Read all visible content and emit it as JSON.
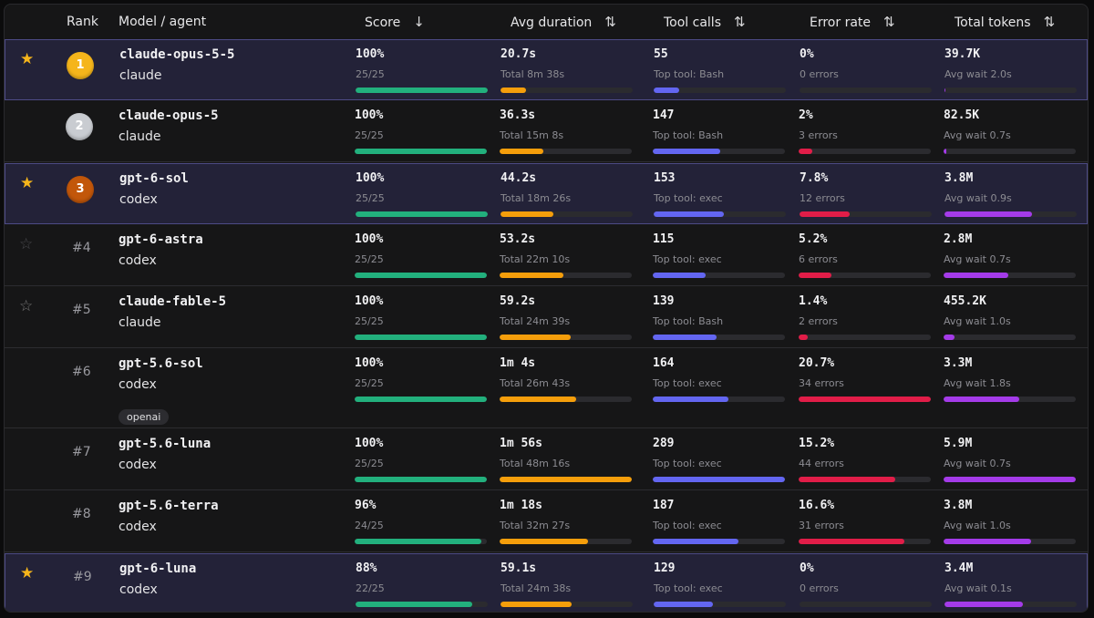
{
  "columns": {
    "rank": "Rank",
    "model": "Model / agent",
    "score": "Score",
    "avg_duration": "Avg duration",
    "tool_calls": "Tool calls",
    "error_rate": "Error rate",
    "total_tokens": "Total tokens"
  },
  "sort_icons": {
    "score": "arrow-down-icon",
    "other": "sort-updown-icon"
  },
  "colors": {
    "score_bar": "#22b07d",
    "duration_bar": "#f59e0b",
    "tools_bar": "#6366f1",
    "error_bar": "#e11d48",
    "tokens_bar": "#a43be9",
    "star_on": "#f5b51b",
    "medal_gold": "#f5b51b",
    "medal_silver": "#c9ccd1",
    "medal_bronze": "#c2570a"
  },
  "rows": [
    {
      "highlight": true,
      "starred": true,
      "rank": "1",
      "medal": "gold",
      "model": "claude-opus-5-5",
      "agent": "claude",
      "tag": "",
      "score": "100%",
      "score_sub": "25/25",
      "score_frac": 1.0,
      "duration": "20.7s",
      "duration_sub": "Total 8m 38s",
      "duration_frac": 0.19,
      "tools": "55",
      "tools_sub": "Top tool: Bash",
      "tools_frac": 0.19,
      "error": "0%",
      "error_sub": "0 errors",
      "error_frac": 0.0,
      "tokens": "39.7K",
      "tokens_sub": "Avg wait 2.0s",
      "tokens_frac": 0.01
    },
    {
      "highlight": false,
      "starred": false,
      "rank": "2",
      "medal": "silver",
      "model": "claude-opus-5",
      "agent": "claude",
      "tag": "",
      "score": "100%",
      "score_sub": "25/25",
      "score_frac": 1.0,
      "duration": "36.3s",
      "duration_sub": "Total 15m 8s",
      "duration_frac": 0.33,
      "tools": "147",
      "tools_sub": "Top tool: Bash",
      "tools_frac": 0.51,
      "error": "2%",
      "error_sub": "3 errors",
      "error_frac": 0.1,
      "tokens": "82.5K",
      "tokens_sub": "Avg wait 0.7s",
      "tokens_frac": 0.02
    },
    {
      "highlight": true,
      "starred": true,
      "rank": "3",
      "medal": "bronze",
      "model": "gpt-6-sol",
      "agent": "codex",
      "tag": "",
      "score": "100%",
      "score_sub": "25/25",
      "score_frac": 1.0,
      "duration": "44.2s",
      "duration_sub": "Total 18m 26s",
      "duration_frac": 0.4,
      "tools": "153",
      "tools_sub": "Top tool: exec",
      "tools_frac": 0.53,
      "error": "7.8%",
      "error_sub": "12 errors",
      "error_frac": 0.38,
      "tokens": "3.8M",
      "tokens_sub": "Avg wait 0.9s",
      "tokens_frac": 0.66
    },
    {
      "highlight": false,
      "starred": false,
      "star_style": "dim",
      "rank": "#4",
      "medal": "",
      "model": "gpt-6-astra",
      "agent": "codex",
      "tag": "",
      "score": "100%",
      "score_sub": "25/25",
      "score_frac": 1.0,
      "duration": "53.2s",
      "duration_sub": "Total 22m 10s",
      "duration_frac": 0.48,
      "tools": "115",
      "tools_sub": "Top tool: exec",
      "tools_frac": 0.4,
      "error": "5.2%",
      "error_sub": "6 errors",
      "error_frac": 0.25,
      "tokens": "2.8M",
      "tokens_sub": "Avg wait 0.7s",
      "tokens_frac": 0.49
    },
    {
      "highlight": false,
      "starred": false,
      "star_style": "outline",
      "rank": "#5",
      "medal": "",
      "model": "claude-fable-5",
      "agent": "claude",
      "tag": "",
      "score": "100%",
      "score_sub": "25/25",
      "score_frac": 1.0,
      "duration": "59.2s",
      "duration_sub": "Total 24m 39s",
      "duration_frac": 0.54,
      "tools": "139",
      "tools_sub": "Top tool: Bash",
      "tools_frac": 0.48,
      "error": "1.4%",
      "error_sub": "2 errors",
      "error_frac": 0.07,
      "tokens": "455.2K",
      "tokens_sub": "Avg wait 1.0s",
      "tokens_frac": 0.08
    },
    {
      "highlight": false,
      "starred": false,
      "rank": "#6",
      "medal": "",
      "model": "gpt-5.6-sol",
      "agent": "codex",
      "tag": "openai",
      "score": "100%",
      "score_sub": "25/25",
      "score_frac": 1.0,
      "duration": "1m 4s",
      "duration_sub": "Total 26m 43s",
      "duration_frac": 0.58,
      "tools": "164",
      "tools_sub": "Top tool: exec",
      "tools_frac": 0.57,
      "error": "20.7%",
      "error_sub": "34 errors",
      "error_frac": 1.0,
      "tokens": "3.3M",
      "tokens_sub": "Avg wait 1.8s",
      "tokens_frac": 0.57
    },
    {
      "highlight": false,
      "starred": false,
      "rank": "#7",
      "medal": "",
      "model": "gpt-5.6-luna",
      "agent": "codex",
      "tag": "",
      "score": "100%",
      "score_sub": "25/25",
      "score_frac": 1.0,
      "duration": "1m 56s",
      "duration_sub": "Total 48m 16s",
      "duration_frac": 1.0,
      "tools": "289",
      "tools_sub": "Top tool: exec",
      "tools_frac": 1.0,
      "error": "15.2%",
      "error_sub": "44 errors",
      "error_frac": 0.73,
      "tokens": "5.9M",
      "tokens_sub": "Avg wait 0.7s",
      "tokens_frac": 1.0
    },
    {
      "highlight": false,
      "starred": false,
      "rank": "#8",
      "medal": "",
      "model": "gpt-5.6-terra",
      "agent": "codex",
      "tag": "",
      "score": "96%",
      "score_sub": "24/25",
      "score_frac": 0.96,
      "duration": "1m 18s",
      "duration_sub": "Total 32m 27s",
      "duration_frac": 0.67,
      "tools": "187",
      "tools_sub": "Top tool: exec",
      "tools_frac": 0.65,
      "error": "16.6%",
      "error_sub": "31 errors",
      "error_frac": 0.8,
      "tokens": "3.8M",
      "tokens_sub": "Avg wait 1.0s",
      "tokens_frac": 0.66
    },
    {
      "highlight": true,
      "starred": true,
      "rank": "#9",
      "medal": "",
      "model": "gpt-6-luna",
      "agent": "codex",
      "tag": "",
      "score": "88%",
      "score_sub": "22/25",
      "score_frac": 0.88,
      "duration": "59.1s",
      "duration_sub": "Total 24m 38s",
      "duration_frac": 0.54,
      "tools": "129",
      "tools_sub": "Top tool: exec",
      "tools_frac": 0.45,
      "error": "0%",
      "error_sub": "0 errors",
      "error_frac": 0.0,
      "tokens": "3.4M",
      "tokens_sub": "Avg wait 0.1s",
      "tokens_frac": 0.59
    }
  ]
}
